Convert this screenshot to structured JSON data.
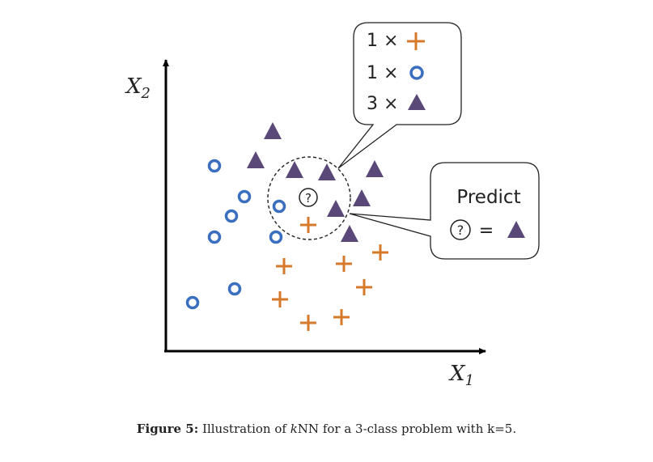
{
  "axes": {
    "x_label": "X",
    "x_sub": "1",
    "y_label": "X",
    "y_sub": "2"
  },
  "neighbors_box": {
    "rows": [
      {
        "count": "1 ×",
        "symbol": "cross-icon"
      },
      {
        "count": "1 ×",
        "symbol": "circle-icon"
      },
      {
        "count": "3 ×",
        "symbol": "triangle-icon"
      }
    ]
  },
  "predict_box": {
    "title": "Predict",
    "query": "?",
    "equals": "=",
    "result": "triangle-icon"
  },
  "query": {
    "label": "?"
  },
  "classes": {
    "circle": {
      "color": "#3a6fc0"
    },
    "cross": {
      "color": "#d7792a"
    },
    "triangle": {
      "color": "#594878"
    }
  },
  "caption": {
    "figure_label": "Figure 5:",
    "text_before": " Illustration of ",
    "italic": "k",
    "text_after": "NN for a 3-class problem with k=5."
  }
}
